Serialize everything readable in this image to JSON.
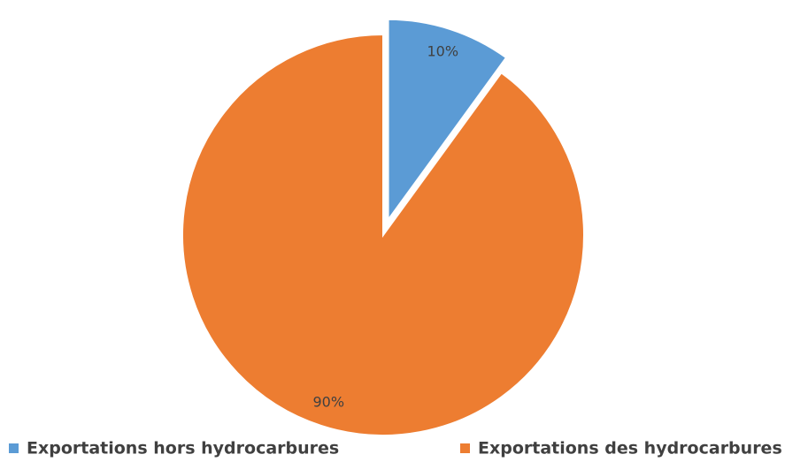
{
  "chart_data": {
    "type": "pie",
    "categories": [
      "Exportations hors hydrocarbures",
      "Exportations des hydrocarbures"
    ],
    "values": [
      10,
      90
    ],
    "value_labels": [
      "10%",
      "90%"
    ],
    "colors": [
      "#5b9bd5",
      "#ed7d31"
    ],
    "exploded": [
      true,
      false
    ],
    "legend": "bottom"
  }
}
